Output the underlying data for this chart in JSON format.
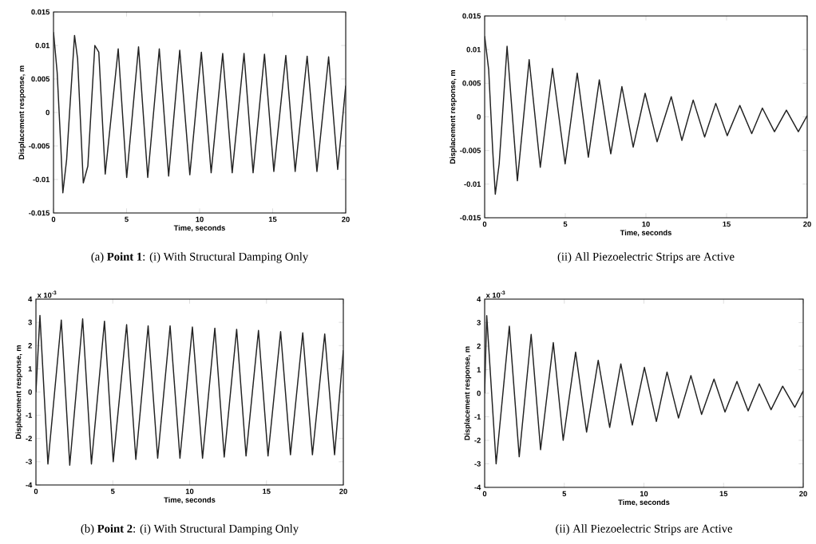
{
  "chart_data": [
    {
      "type": "line",
      "title": "(a) **Point 1**: (i) With Structural Damping Only",
      "xlabel": "Time, seconds",
      "ylabel": "Displacement response, m",
      "color": "#222222",
      "line_style": "solid",
      "xlim": [
        0,
        20
      ],
      "ylim": [
        -0.015,
        0.015
      ],
      "xticks": [
        0,
        5,
        10,
        15,
        20
      ],
      "yticks": [
        -0.015,
        -0.01,
        -0.005,
        0,
        0.005,
        0.01,
        0.015
      ],
      "x": [
        0,
        0.25,
        0.5,
        0.64,
        0.9,
        1.1,
        1.44,
        1.65,
        2.04,
        2.35,
        2.83,
        3.1,
        3.54,
        4.43,
        5.01,
        5.82,
        6.45,
        7.24,
        7.88,
        8.64,
        9.33,
        10.12,
        10.79,
        11.58,
        12.23,
        13.04,
        13.66,
        14.44,
        15.08,
        15.9,
        16.54,
        17.36,
        18.03,
        18.83,
        19.45,
        20
      ],
      "values": [
        0.012,
        0.006,
        -0.005,
        -0.012,
        -0.007,
        0,
        0.0115,
        0.008,
        -0.0105,
        -0.008,
        0.01,
        0.009,
        -0.0092,
        0.0095,
        -0.0097,
        0.0098,
        -0.0097,
        0.0095,
        -0.0095,
        0.0093,
        -0.0093,
        0.009,
        -0.009,
        0.0088,
        -0.009,
        0.0088,
        -0.009,
        0.0087,
        -0.0088,
        0.0085,
        -0.0088,
        0.0084,
        -0.0088,
        0.0083,
        -0.0085,
        0.004
      ]
    },
    {
      "type": "line",
      "title": "(ii) All Piezoelectric Strips are Active",
      "xlabel": "Time, seconds",
      "ylabel": "Displacement response, m",
      "color": "#222222",
      "line_style": "solid",
      "xlim": [
        0,
        20
      ],
      "ylim": [
        -0.015,
        0.015
      ],
      "xticks": [
        0,
        5,
        10,
        15,
        20
      ],
      "yticks": [
        -0.015,
        -0.01,
        -0.005,
        0,
        0.005,
        0.01,
        0.015
      ],
      "x": [
        0,
        0.25,
        0.5,
        0.66,
        0.9,
        1.1,
        1.39,
        2.03,
        2.76,
        3.45,
        4.21,
        4.99,
        5.74,
        6.43,
        7.11,
        7.82,
        8.51,
        9.21,
        9.95,
        10.69,
        11.57,
        12.23,
        12.93,
        13.64,
        14.33,
        15.04,
        15.82,
        16.56,
        17.22,
        17.97,
        18.71,
        19.45,
        20
      ],
      "values": [
        0.012,
        0.007,
        -0.005,
        -0.0115,
        -0.007,
        0,
        0.0105,
        -0.0095,
        0.0085,
        -0.0075,
        0.0072,
        -0.007,
        0.0065,
        -0.006,
        0.0055,
        -0.0055,
        0.0045,
        -0.0045,
        0.0035,
        -0.0037,
        0.003,
        -0.0035,
        0.0025,
        -0.003,
        0.002,
        -0.0028,
        0.0017,
        -0.0025,
        0.0013,
        -0.0022,
        0.001,
        -0.0022,
        0.0002
      ]
    },
    {
      "type": "line",
      "title": "(b) **Point 2**: (i) With Structural Damping Only",
      "xlabel": "Time, seconds",
      "ylabel": "Displacement response, m",
      "annotations": [
        "x 10$^{-3}$"
      ],
      "color": "#222222",
      "line_style": "solid",
      "xlim": [
        0,
        20
      ],
      "ylim": [
        -4,
        4
      ],
      "xticks": [
        0,
        5,
        10,
        15,
        20
      ],
      "yticks": [
        -4,
        -3,
        -2,
        -1,
        0,
        1,
        2,
        3,
        4
      ],
      "x": [
        0,
        0.26,
        0.78,
        1.65,
        2.2,
        3.04,
        3.61,
        4.46,
        5.03,
        5.9,
        6.5,
        7.3,
        7.92,
        8.73,
        9.37,
        10.18,
        10.84,
        11.64,
        12.25,
        13.06,
        13.67,
        14.48,
        15.1,
        15.92,
        16.56,
        17.36,
        17.99,
        18.79,
        19.43,
        20
      ],
      "values": [
        0,
        3.3,
        -3.1,
        3.1,
        -3.15,
        3.15,
        -3.1,
        3.05,
        -3.0,
        2.9,
        -2.9,
        2.85,
        -2.85,
        2.85,
        -2.85,
        2.8,
        -2.85,
        2.75,
        -2.8,
        2.7,
        -2.75,
        2.65,
        -2.75,
        2.6,
        -2.7,
        2.55,
        -2.7,
        2.5,
        -2.7,
        1.8
      ]
    },
    {
      "type": "line",
      "title": "(ii) All Piezoelectric Strips are Active",
      "xlabel": "Time, seconds",
      "ylabel": "Displacement response, m",
      "annotations": [
        "x 10$^{-3}$"
      ],
      "color": "#222222",
      "line_style": "solid",
      "xlim": [
        0,
        20
      ],
      "ylim": [
        -4,
        4
      ],
      "xticks": [
        0,
        5,
        10,
        15,
        20
      ],
      "yticks": [
        -4,
        -3,
        -2,
        -1,
        0,
        1,
        2,
        3,
        4
      ],
      "x": [
        0,
        0.13,
        0.72,
        1.55,
        2.17,
        2.92,
        3.51,
        4.31,
        4.93,
        5.71,
        6.4,
        7.13,
        7.85,
        8.55,
        9.27,
        10.03,
        10.78,
        11.45,
        12.17,
        12.95,
        13.62,
        14.4,
        15.09,
        15.84,
        16.54,
        17.24,
        17.98,
        18.71,
        19.47,
        20
      ],
      "values": [
        0,
        3.3,
        -3.0,
        2.85,
        -2.7,
        2.5,
        -2.4,
        2.15,
        -2.0,
        1.75,
        -1.65,
        1.4,
        -1.45,
        1.25,
        -1.35,
        1.1,
        -1.2,
        0.9,
        -1.05,
        0.75,
        -0.9,
        0.6,
        -0.8,
        0.5,
        -0.75,
        0.4,
        -0.7,
        0.3,
        -0.6,
        0.1
      ]
    }
  ]
}
